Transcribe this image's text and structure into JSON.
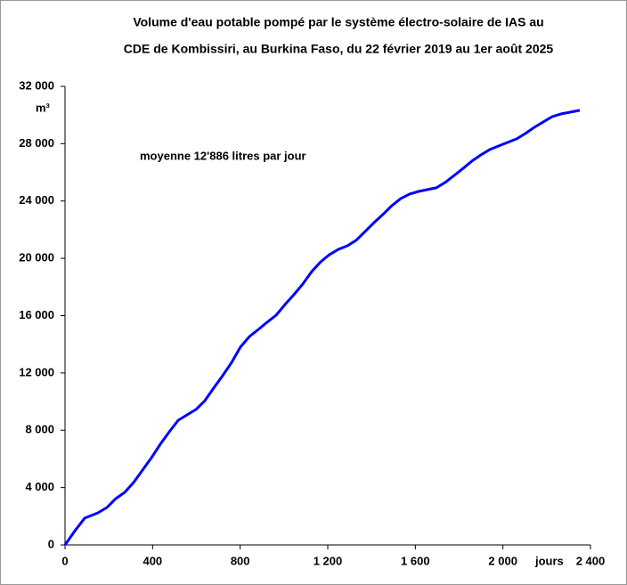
{
  "chart_data": {
    "type": "line",
    "title": [
      "Volume d'eau potable pompé par le système électro-solaire de IAS au",
      "CDE de Kombissiri, au Burkina Faso, du 22 février 2019 au 1er août 2025"
    ],
    "y_label": "m³",
    "x_label": "jours",
    "annotation": "moyenne  12'886 litres par jour",
    "x": [
      0,
      49,
      90,
      150,
      191,
      232,
      273,
      313,
      354,
      395,
      435,
      476,
      517,
      557,
      598,
      639,
      679,
      720,
      761,
      801,
      842,
      883,
      923,
      964,
      1005,
      1045,
      1086,
      1127,
      1168,
      1208,
      1249,
      1290,
      1330,
      1371,
      1412,
      1452,
      1493,
      1534,
      1574,
      1615,
      1656,
      1696,
      1737,
      1778,
      1819,
      1859,
      1900,
      1941,
      1981,
      2022,
      2063,
      2103,
      2144,
      2185,
      2225,
      2266,
      2307,
      2351
    ],
    "series": [
      {
        "name": "Volume",
        "color": "#0000ff",
        "values": [
          0,
          1060,
          1870,
          2240,
          2610,
          3230,
          3670,
          4350,
          5220,
          6090,
          7020,
          7890,
          8700,
          9070,
          9450,
          10070,
          10940,
          11810,
          12740,
          13800,
          14540,
          15040,
          15540,
          16030,
          16780,
          17460,
          18210,
          19080,
          19760,
          20260,
          20630,
          20880,
          21260,
          21880,
          22500,
          23060,
          23680,
          24180,
          24490,
          24670,
          24800,
          24920,
          25300,
          25790,
          26290,
          26790,
          27220,
          27600,
          27840,
          28090,
          28340,
          28710,
          29150,
          29520,
          29890,
          30080,
          30200,
          30330
        ]
      }
    ],
    "xlim": [
      0,
      2400
    ],
    "xticks": [
      0,
      400,
      800,
      {
        "value": 1200,
        "label": "1 200"
      },
      {
        "value": 1600,
        "label": "1 600"
      },
      {
        "value": 2000,
        "label": "2 000"
      },
      {
        "value": 2400,
        "label": "2 400"
      }
    ],
    "ylim": [
      0,
      32000
    ],
    "yticks": [
      0,
      {
        "value": 4000,
        "label": "4 000"
      },
      {
        "value": 8000,
        "label": "8 000"
      },
      {
        "value": 12000,
        "label": "12 000"
      },
      {
        "value": 16000,
        "label": "16 000"
      },
      {
        "value": 20000,
        "label": "20 000"
      },
      {
        "value": 24000,
        "label": "24 000"
      },
      {
        "value": 28000,
        "label": "28 000"
      },
      {
        "value": 32000,
        "label": "32 000"
      }
    ],
    "grid": false
  }
}
